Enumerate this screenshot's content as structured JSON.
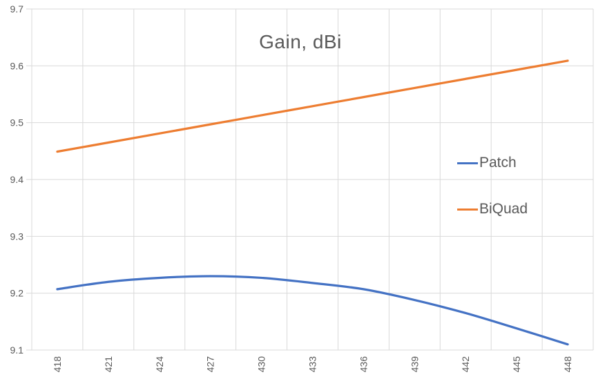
{
  "chart_data": {
    "type": "line",
    "title": "Gain, dBi",
    "categories": [
      "418",
      "421",
      "424",
      "427",
      "430",
      "433",
      "436",
      "439",
      "442",
      "445",
      "448"
    ],
    "series": [
      {
        "name": "Patch",
        "color": "#4472C4",
        "values": [
          9.207,
          9.22,
          9.227,
          9.23,
          9.227,
          9.218,
          9.207,
          9.188,
          9.165,
          9.138,
          9.11
        ]
      },
      {
        "name": "BiQuad",
        "color": "#ED7D31",
        "values": [
          9.449,
          9.465,
          9.481,
          9.497,
          9.513,
          9.529,
          9.545,
          9.561,
          9.577,
          9.593,
          9.609
        ]
      }
    ],
    "xlabel": "",
    "ylabel": "",
    "ylim": [
      9.1,
      9.7
    ],
    "yticks": [
      "9.1",
      "9.2",
      "9.3",
      "9.4",
      "9.5",
      "9.6",
      "9.7"
    ],
    "grid": true,
    "smooth_lines": true,
    "legend_position": "inside-right"
  },
  "style": {
    "grid_color": "#D9D9D9",
    "axis_text_color": "#595959",
    "title_color": "#595959",
    "background": "#FFFFFF"
  }
}
